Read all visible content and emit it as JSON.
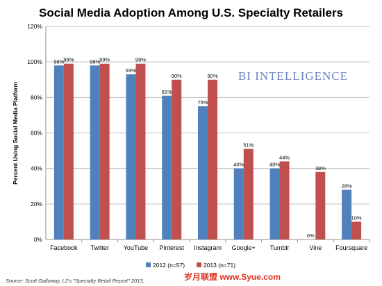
{
  "chart_data": {
    "type": "bar",
    "title": "Social Media Adoption Among U.S. Specialty Retailers",
    "ylabel": "Percent Using Social Media Platform",
    "xlabel": "",
    "ylim": [
      0,
      120
    ],
    "yticks": [
      "0%",
      "20%",
      "40%",
      "60%",
      "80%",
      "100%",
      "120%"
    ],
    "ytick_values": [
      0,
      20,
      40,
      60,
      80,
      100,
      120
    ],
    "grid": true,
    "legend_position": "bottom-center",
    "categories": [
      "Facebook",
      "Twitter",
      "YouTube",
      "Pinterest",
      "Instagram",
      "Google+",
      "Tumblr",
      "Vine",
      "Foursquare"
    ],
    "series": [
      {
        "name": "2012 (n=57)",
        "color": "#4f81bd",
        "values": [
          98,
          98,
          93,
          81,
          75,
          40,
          40,
          0,
          28
        ],
        "labels": [
          "98%",
          "98%",
          "93%",
          "81%",
          "75%",
          "40%",
          "40%",
          "0%",
          "28%"
        ]
      },
      {
        "name": "2013 (n=71)",
        "color": "#c0504d",
        "values": [
          99,
          99,
          99,
          90,
          90,
          51,
          44,
          38,
          10
        ],
        "labels": [
          "99%",
          "99%",
          "99%",
          "90%",
          "90%",
          "51%",
          "44%",
          "38%",
          "10%"
        ]
      }
    ],
    "annotations": {
      "brand": "BI INTELLIGENCE",
      "source": "Source: Scott Galloway, L2's \"Specialty Retail Report\" 2013, ",
      "watermark": "岁月联盟 www.Syue.com"
    }
  }
}
